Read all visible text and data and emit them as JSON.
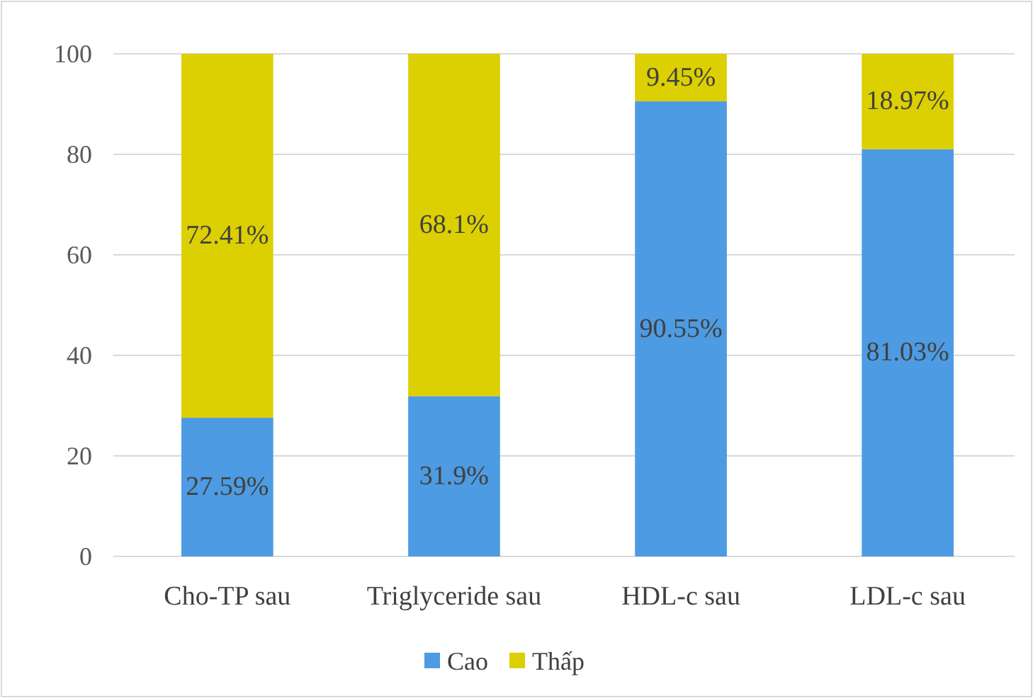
{
  "chart_data": {
    "type": "bar",
    "stacked": true,
    "categories": [
      "Cho-TP sau",
      "Triglyceride sau",
      "HDL-c sau",
      "LDL-c sau"
    ],
    "series": [
      {
        "name": "Cao",
        "color": "#4d9be2",
        "values": [
          27.59,
          31.9,
          90.55,
          81.03
        ],
        "value_labels": [
          "27.59%",
          "31.9%",
          "90.55%",
          "81.03%"
        ]
      },
      {
        "name": "Thấp",
        "color": "#dccf02",
        "values": [
          72.41,
          68.1,
          9.45,
          18.97
        ],
        "value_labels": [
          "72.41%",
          "68.1%",
          "9.45%",
          "18.97%"
        ]
      }
    ],
    "ylim": [
      0,
      100
    ],
    "yticks": [
      0,
      20,
      40,
      60,
      80,
      100
    ],
    "grid": "y",
    "legend": "bottom"
  }
}
